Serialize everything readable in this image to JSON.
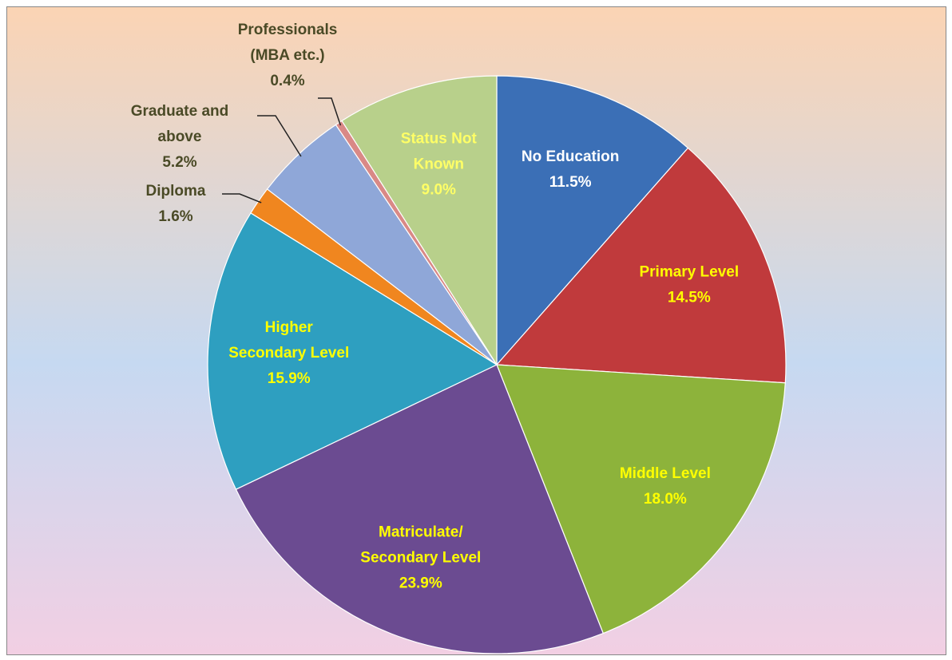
{
  "chart_data": {
    "type": "pie",
    "categories": [
      "No Education",
      "Primary Level",
      "Middle Level",
      "Matriculate/\nSecondary Level",
      "Higher\nSecondary Level",
      "Diploma",
      "Graduate and\nabove",
      "Professionals\n(MBA etc.)",
      "Status Not\nKnown"
    ],
    "values": [
      11.5,
      14.5,
      18.0,
      23.9,
      15.9,
      1.6,
      5.2,
      0.4,
      9.0
    ],
    "value_labels": [
      "11.5%",
      "14.5%",
      "18.0%",
      "23.9%",
      "15.9%",
      "1.6%",
      "5.2%",
      "0.4%",
      "9.0%"
    ],
    "colors": [
      "#3b6fb6",
      "#c03a3c",
      "#8db33b",
      "#6b4b91",
      "#2e9fc0",
      "#f0861f",
      "#8fa7d8",
      "#d98986",
      "#b8d08b"
    ],
    "label_colors": [
      "#ffffff",
      "#ffff00",
      "#ffff00",
      "#ffff00",
      "#ffff00",
      "#4a4a26",
      "#4a4a26",
      "#4a4a26",
      "#ffff66"
    ]
  }
}
